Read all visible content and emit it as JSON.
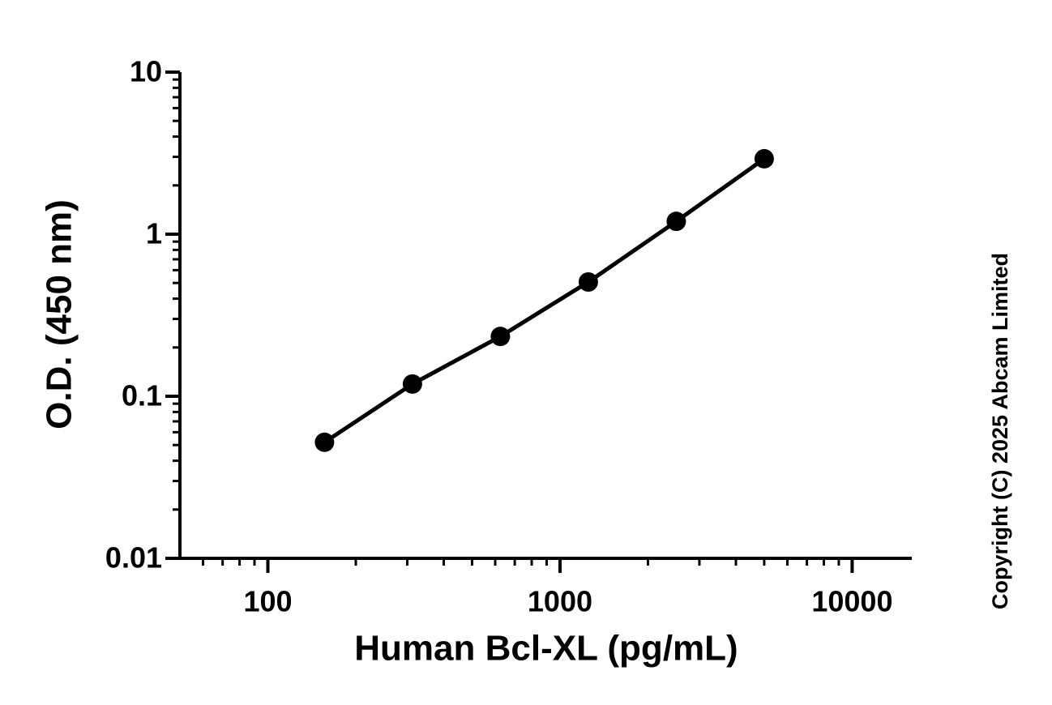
{
  "chart_data": {
    "type": "line",
    "x_label": "Human Bcl-XL (pg/mL)",
    "y_label": "O.D. (450 nm)",
    "copyright": "Copyright (C) 2025 Abcam Limited",
    "x": [
      156.25,
      312.5,
      625,
      1250,
      2500,
      5000
    ],
    "series": [
      {
        "color": "#000000",
        "values": [
          0.052,
          0.119,
          0.234,
          0.507,
          1.2,
          2.92
        ]
      }
    ],
    "xlim": [
      50,
      16000
    ],
    "ylim": [
      0.01,
      10
    ],
    "xticks": [
      100,
      1000,
      10000
    ],
    "yticks": [
      0.01,
      0.1,
      1,
      10
    ],
    "xscale": "log",
    "yscale": "log"
  }
}
